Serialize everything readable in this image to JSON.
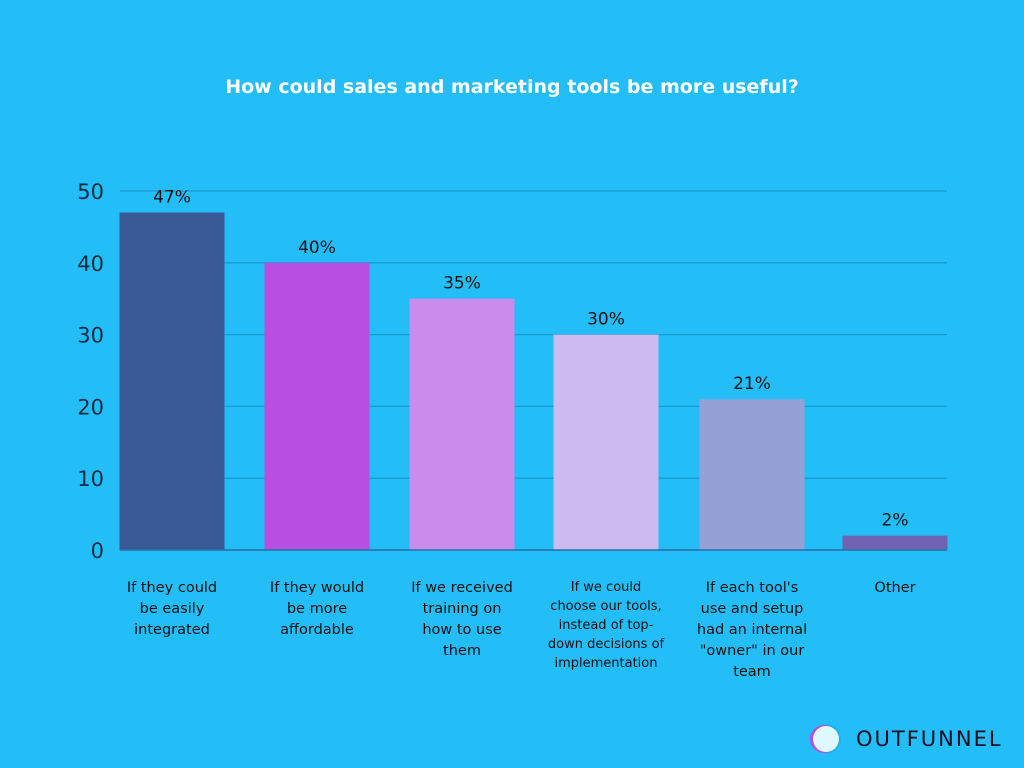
{
  "chart_data": {
    "type": "bar",
    "title": "How could sales and marketing tools be more useful?",
    "categories": [
      "If they could\nbe easily\nintegrated",
      "If they would\nbe more\naffordable",
      "If we received\ntraining on\nhow to use\nthem",
      "If we could\nchoose our tools,\ninstead of top-\ndown decisions of\nimplementation",
      "If each tool's\nuse and setup\nhad an internal\n\"owner\" in our\nteam",
      "Other"
    ],
    "values": [
      47,
      40,
      35,
      30,
      21,
      2
    ],
    "data_labels": [
      "47%",
      "40%",
      "35%",
      "30%",
      "21%",
      "2%"
    ],
    "colors": [
      "#395a96",
      "#b74fe0",
      "#cb8bec",
      "#ccbaf0",
      "#95a0d6",
      "#6f62b0"
    ],
    "ylim": [
      0,
      50
    ],
    "yticks": [
      0,
      10,
      20,
      30,
      40,
      50
    ],
    "grid": true,
    "xlabel": "",
    "ylabel": ""
  },
  "logo": {
    "text": "OUTFUNNEL"
  }
}
